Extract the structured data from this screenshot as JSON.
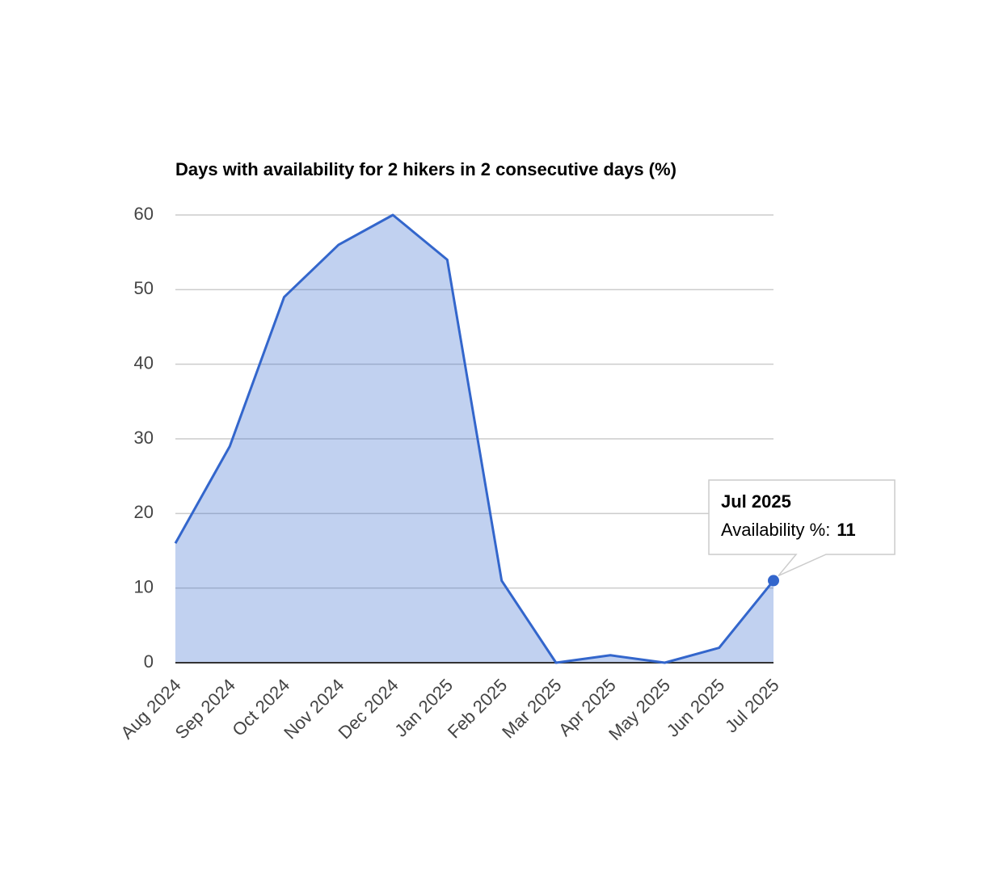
{
  "chart_data": {
    "type": "area",
    "title": "Days with availability for 2 hikers in 2 consecutive days (%)",
    "categories": [
      "Aug 2024",
      "Sep 2024",
      "Oct 2024",
      "Nov 2024",
      "Dec 2024",
      "Jan 2025",
      "Feb 2025",
      "Mar 2025",
      "Apr 2025",
      "May 2025",
      "Jun 2025",
      "Jul 2025"
    ],
    "values": [
      16,
      29,
      49,
      56,
      60,
      54,
      11,
      0,
      1,
      0,
      2,
      11
    ],
    "color": "#3366cc",
    "ylim": [
      0,
      60
    ],
    "yticks": [
      0,
      10,
      20,
      30,
      40,
      50,
      60
    ],
    "grid": true,
    "tooltip": {
      "label": "Availability %:"
    }
  }
}
